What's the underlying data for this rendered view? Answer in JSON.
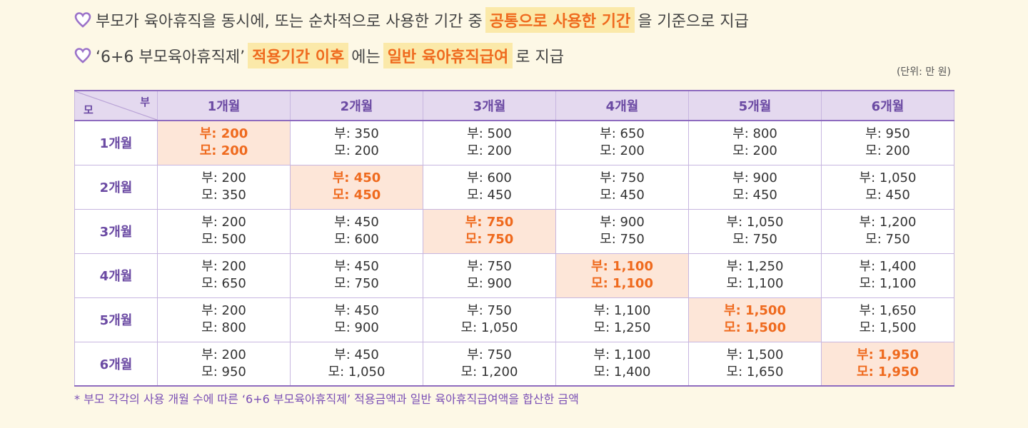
{
  "line1": {
    "text_before": "부모가 육아휴직을 동시에, 또는 순차적으로 사용한 기간 중",
    "highlight": "공통으로 사용한 기간",
    "text_after": "을 기준으로 지급"
  },
  "line2": {
    "text_before": "‘6+6 부모육아휴직제’",
    "highlight1": "적용기간 이후",
    "text_middle": "에는",
    "highlight2": "일반 육아휴직급여",
    "text_after": "로 지급"
  },
  "unit_note": "(단위: 만 원)",
  "table": {
    "corner_mother": "모",
    "corner_father": "부",
    "columns": [
      "1개월",
      "2개월",
      "3개월",
      "4개월",
      "5개월",
      "6개월"
    ],
    "rows": [
      {
        "label": "1개월",
        "cells": [
          {
            "f": "부: 200",
            "m": "모: 200"
          },
          {
            "f": "부: 350",
            "m": "모: 200"
          },
          {
            "f": "부: 500",
            "m": "모: 200"
          },
          {
            "f": "부: 650",
            "m": "모: 200"
          },
          {
            "f": "부: 800",
            "m": "모: 200"
          },
          {
            "f": "부: 950",
            "m": "모: 200"
          }
        ]
      },
      {
        "label": "2개월",
        "cells": [
          {
            "f": "부: 200",
            "m": "모: 350"
          },
          {
            "f": "부: 450",
            "m": "모: 450"
          },
          {
            "f": "부: 600",
            "m": "모: 450"
          },
          {
            "f": "부: 750",
            "m": "모: 450"
          },
          {
            "f": "부: 900",
            "m": "모: 450"
          },
          {
            "f": "부: 1,050",
            "m": "모: 450"
          }
        ]
      },
      {
        "label": "3개월",
        "cells": [
          {
            "f": "부: 200",
            "m": "모: 500"
          },
          {
            "f": "부: 450",
            "m": "모: 600"
          },
          {
            "f": "부: 750",
            "m": "모: 750"
          },
          {
            "f": "부: 900",
            "m": "모: 750"
          },
          {
            "f": "부: 1,050",
            "m": "모: 750"
          },
          {
            "f": "부: 1,200",
            "m": "모: 750"
          }
        ]
      },
      {
        "label": "4개월",
        "cells": [
          {
            "f": "부: 200",
            "m": "모: 650"
          },
          {
            "f": "부: 450",
            "m": "모: 750"
          },
          {
            "f": "부: 750",
            "m": "모: 900"
          },
          {
            "f": "부: 1,100",
            "m": "모: 1,100"
          },
          {
            "f": "부: 1,250",
            "m": "모: 1,100"
          },
          {
            "f": "부: 1,400",
            "m": "모: 1,100"
          }
        ]
      },
      {
        "label": "5개월",
        "cells": [
          {
            "f": "부: 200",
            "m": "모: 800"
          },
          {
            "f": "부: 450",
            "m": "모: 900"
          },
          {
            "f": "부: 750",
            "m": "모: 1,050"
          },
          {
            "f": "부: 1,100",
            "m": "모: 1,250"
          },
          {
            "f": "부: 1,500",
            "m": "모: 1,500"
          },
          {
            "f": "부: 1,650",
            "m": "모: 1,500"
          }
        ]
      },
      {
        "label": "6개월",
        "cells": [
          {
            "f": "부: 200",
            "m": "모: 950"
          },
          {
            "f": "부: 450",
            "m": "모: 1,050"
          },
          {
            "f": "부: 750",
            "m": "모: 1,200"
          },
          {
            "f": "부: 1,100",
            "m": "모: 1,400"
          },
          {
            "f": "부: 1,500",
            "m": "모: 1,650"
          },
          {
            "f": "부: 1,950",
            "m": "모: 1,950"
          }
        ]
      }
    ]
  },
  "footnote": "* 부모 각각의 사용 개월 수에 따른 ‘6+6 부모육아휴직제’ 적용금액과 일반 육아휴직급여액을 합산한 금액",
  "colors": {
    "background": "#fdf8e6",
    "purple": "#8e6bbf",
    "header_bg": "#e4d9ef",
    "highlight_bg": "#fbe9a9",
    "accent_orange": "#ef6a1e",
    "diagonal_cell_bg": "#fde6d8"
  },
  "icons": {
    "bullet": "heart-outline-icon"
  }
}
